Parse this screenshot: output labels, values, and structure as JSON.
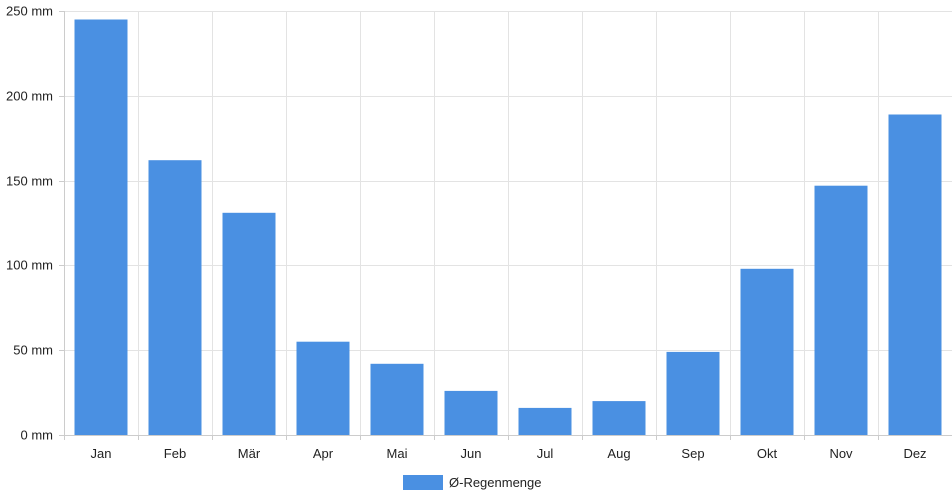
{
  "chart_data": {
    "type": "bar",
    "categories": [
      "Jan",
      "Feb",
      "Mär",
      "Apr",
      "Mai",
      "Jun",
      "Jul",
      "Aug",
      "Sep",
      "Okt",
      "Nov",
      "Dez"
    ],
    "series": [
      {
        "name": "Ø-Regenmenge",
        "values": [
          245,
          162,
          131,
          55,
          42,
          26,
          16,
          20,
          49,
          98,
          147,
          189
        ],
        "color": "#4a90e2"
      }
    ],
    "ylim": [
      0,
      250
    ],
    "yticks": [
      0,
      50,
      100,
      150,
      200,
      250
    ],
    "ytick_labels": [
      "0 mm",
      "50 mm",
      "100 mm",
      "150 mm",
      "200 mm",
      "250 mm"
    ],
    "grid": true,
    "legend_position": "bottom-center",
    "title": "",
    "xlabel": "",
    "ylabel": ""
  }
}
